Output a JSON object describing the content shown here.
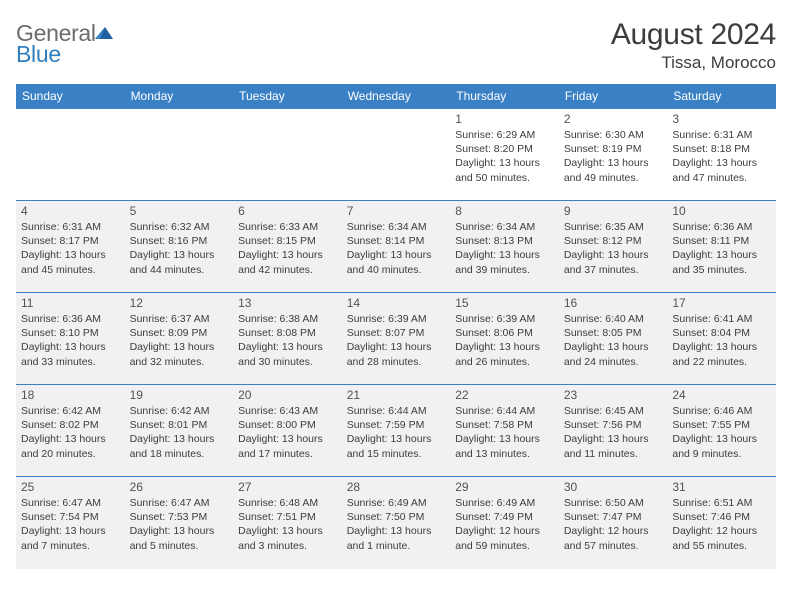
{
  "brand": {
    "general": "General",
    "blue": "Blue"
  },
  "title": "August 2024",
  "location": "Tissa, Morocco",
  "header_bg": "#3a80c4",
  "header_fg": "#ffffff",
  "border_color": "#3a80c4",
  "shade_bg": "#f1f1f1",
  "text_color": "#3d3d3d",
  "daynum_color": "#535353",
  "day_headers": [
    "Sunday",
    "Monday",
    "Tuesday",
    "Wednesday",
    "Thursday",
    "Friday",
    "Saturday"
  ],
  "weeks": [
    {
      "shade": false,
      "days": [
        {
          "empty": true
        },
        {
          "empty": true
        },
        {
          "empty": true
        },
        {
          "empty": true
        },
        {
          "n": "1",
          "sunrise": "6:29 AM",
          "sunset": "8:20 PM",
          "daylight": "13 hours and 50 minutes."
        },
        {
          "n": "2",
          "sunrise": "6:30 AM",
          "sunset": "8:19 PM",
          "daylight": "13 hours and 49 minutes."
        },
        {
          "n": "3",
          "sunrise": "6:31 AM",
          "sunset": "8:18 PM",
          "daylight": "13 hours and 47 minutes."
        }
      ]
    },
    {
      "shade": true,
      "days": [
        {
          "n": "4",
          "sunrise": "6:31 AM",
          "sunset": "8:17 PM",
          "daylight": "13 hours and 45 minutes."
        },
        {
          "n": "5",
          "sunrise": "6:32 AM",
          "sunset": "8:16 PM",
          "daylight": "13 hours and 44 minutes."
        },
        {
          "n": "6",
          "sunrise": "6:33 AM",
          "sunset": "8:15 PM",
          "daylight": "13 hours and 42 minutes."
        },
        {
          "n": "7",
          "sunrise": "6:34 AM",
          "sunset": "8:14 PM",
          "daylight": "13 hours and 40 minutes."
        },
        {
          "n": "8",
          "sunrise": "6:34 AM",
          "sunset": "8:13 PM",
          "daylight": "13 hours and 39 minutes."
        },
        {
          "n": "9",
          "sunrise": "6:35 AM",
          "sunset": "8:12 PM",
          "daylight": "13 hours and 37 minutes."
        },
        {
          "n": "10",
          "sunrise": "6:36 AM",
          "sunset": "8:11 PM",
          "daylight": "13 hours and 35 minutes."
        }
      ]
    },
    {
      "shade": true,
      "days": [
        {
          "n": "11",
          "sunrise": "6:36 AM",
          "sunset": "8:10 PM",
          "daylight": "13 hours and 33 minutes."
        },
        {
          "n": "12",
          "sunrise": "6:37 AM",
          "sunset": "8:09 PM",
          "daylight": "13 hours and 32 minutes."
        },
        {
          "n": "13",
          "sunrise": "6:38 AM",
          "sunset": "8:08 PM",
          "daylight": "13 hours and 30 minutes."
        },
        {
          "n": "14",
          "sunrise": "6:39 AM",
          "sunset": "8:07 PM",
          "daylight": "13 hours and 28 minutes."
        },
        {
          "n": "15",
          "sunrise": "6:39 AM",
          "sunset": "8:06 PM",
          "daylight": "13 hours and 26 minutes."
        },
        {
          "n": "16",
          "sunrise": "6:40 AM",
          "sunset": "8:05 PM",
          "daylight": "13 hours and 24 minutes."
        },
        {
          "n": "17",
          "sunrise": "6:41 AM",
          "sunset": "8:04 PM",
          "daylight": "13 hours and 22 minutes."
        }
      ]
    },
    {
      "shade": true,
      "days": [
        {
          "n": "18",
          "sunrise": "6:42 AM",
          "sunset": "8:02 PM",
          "daylight": "13 hours and 20 minutes."
        },
        {
          "n": "19",
          "sunrise": "6:42 AM",
          "sunset": "8:01 PM",
          "daylight": "13 hours and 18 minutes."
        },
        {
          "n": "20",
          "sunrise": "6:43 AM",
          "sunset": "8:00 PM",
          "daylight": "13 hours and 17 minutes."
        },
        {
          "n": "21",
          "sunrise": "6:44 AM",
          "sunset": "7:59 PM",
          "daylight": "13 hours and 15 minutes."
        },
        {
          "n": "22",
          "sunrise": "6:44 AM",
          "sunset": "7:58 PM",
          "daylight": "13 hours and 13 minutes."
        },
        {
          "n": "23",
          "sunrise": "6:45 AM",
          "sunset": "7:56 PM",
          "daylight": "13 hours and 11 minutes."
        },
        {
          "n": "24",
          "sunrise": "6:46 AM",
          "sunset": "7:55 PM",
          "daylight": "13 hours and 9 minutes."
        }
      ]
    },
    {
      "shade": true,
      "days": [
        {
          "n": "25",
          "sunrise": "6:47 AM",
          "sunset": "7:54 PM",
          "daylight": "13 hours and 7 minutes."
        },
        {
          "n": "26",
          "sunrise": "6:47 AM",
          "sunset": "7:53 PM",
          "daylight": "13 hours and 5 minutes."
        },
        {
          "n": "27",
          "sunrise": "6:48 AM",
          "sunset": "7:51 PM",
          "daylight": "13 hours and 3 minutes."
        },
        {
          "n": "28",
          "sunrise": "6:49 AM",
          "sunset": "7:50 PM",
          "daylight": "13 hours and 1 minute."
        },
        {
          "n": "29",
          "sunrise": "6:49 AM",
          "sunset": "7:49 PM",
          "daylight": "12 hours and 59 minutes."
        },
        {
          "n": "30",
          "sunrise": "6:50 AM",
          "sunset": "7:47 PM",
          "daylight": "12 hours and 57 minutes."
        },
        {
          "n": "31",
          "sunrise": "6:51 AM",
          "sunset": "7:46 PM",
          "daylight": "12 hours and 55 minutes."
        }
      ]
    }
  ],
  "labels": {
    "sunrise": "Sunrise:",
    "sunset": "Sunset:",
    "daylight": "Daylight:"
  }
}
